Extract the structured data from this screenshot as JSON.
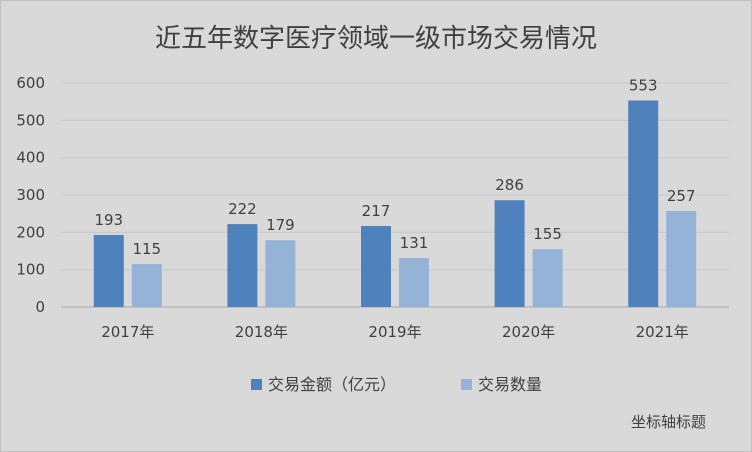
{
  "chart_data": {
    "type": "bar",
    "title": "近五年数字医疗领域一级市场交易情况",
    "categories": [
      "2017年",
      "2018年",
      "2019年",
      "2020年",
      "2021年"
    ],
    "series": [
      {
        "name": "交易金额（亿元）",
        "values": [
          193,
          222,
          217,
          286,
          553
        ],
        "color": "#4f81bd"
      },
      {
        "name": "交易数量",
        "values": [
          115,
          179,
          131,
          155,
          257
        ],
        "color": "#95b3d7"
      }
    ],
    "ylim": [
      0,
      600
    ],
    "yticks": [
      0,
      100,
      200,
      300,
      400,
      500,
      600
    ],
    "grid": true,
    "legend_position": "bottom",
    "axis_title_placeholder": "坐标轴标题"
  }
}
